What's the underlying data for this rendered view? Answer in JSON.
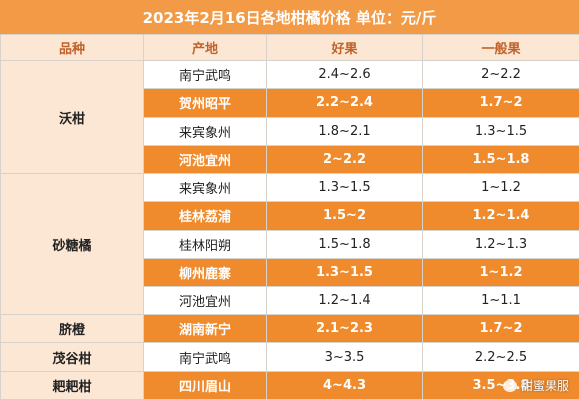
{
  "title": "2023年2月16日各地柑橘价格  单位：元/斤",
  "headers": {
    "variety": "品种",
    "origin": "产地",
    "good": "好果",
    "average": "一般果"
  },
  "groups": [
    {
      "variety": "沃柑",
      "rows": [
        {
          "origin": "南宁武鸣",
          "good": "2.4~2.6",
          "average": "2~2.2"
        },
        {
          "origin": "贺州昭平",
          "good": "2.2~2.4",
          "average": "1.7~2"
        },
        {
          "origin": "来宾象州",
          "good": "1.8~2.1",
          "average": "1.3~1.5"
        },
        {
          "origin": "河池宜州",
          "good": "2~2.2",
          "average": "1.5~1.8"
        }
      ]
    },
    {
      "variety": "砂糖橘",
      "rows": [
        {
          "origin": "来宾象州",
          "good": "1.3~1.5",
          "average": "1~1.2"
        },
        {
          "origin": "桂林荔浦",
          "good": "1.5~2",
          "average": "1.2~1.4"
        },
        {
          "origin": "桂林阳朔",
          "good": "1.5~1.8",
          "average": "1.2~1.3"
        },
        {
          "origin": "柳州鹿寨",
          "good": "1.3~1.5",
          "average": "1~1.2"
        },
        {
          "origin": "河池宜州",
          "good": "1.2~1.4",
          "average": "1~1.1"
        }
      ]
    },
    {
      "variety": "脐橙",
      "rows": [
        {
          "origin": "湖南新宁",
          "good": "2.1~2.3",
          "average": "1.7~2"
        }
      ]
    },
    {
      "variety": "茂谷柑",
      "rows": [
        {
          "origin": "南宁武鸣",
          "good": "3~3.5",
          "average": "2.2~2.5"
        }
      ]
    },
    {
      "variety": "耙耙柑",
      "rows": [
        {
          "origin": "四川眉山",
          "good": "4~4.3",
          "average": "3.5~3.8"
        }
      ]
    }
  ],
  "watermark": "甜蜜果服",
  "colors": {
    "title_bg": "#f29a45",
    "highlight_row": "#ef8b2c",
    "header_bg": "#fbe7d3",
    "header_text": "#c0622a"
  }
}
